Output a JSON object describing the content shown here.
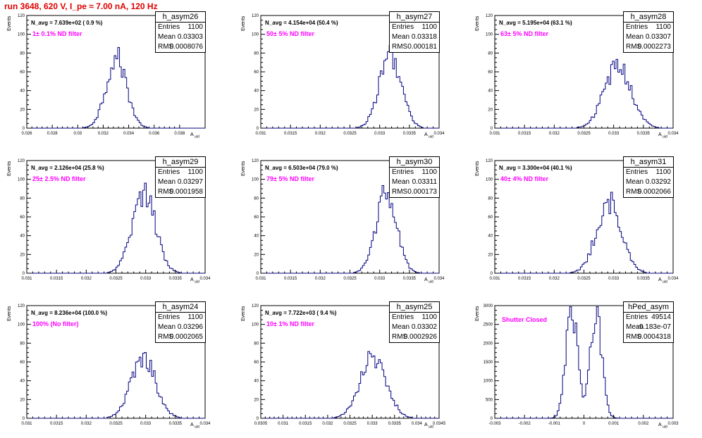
{
  "page": {
    "run_title": "run 3648,   620 V, I_pe ≈ 7.00 nA, 120 Hz"
  },
  "chart_data": [
    {
      "type": "bar",
      "hist_name": "h_asym26",
      "n_avg_label": "N_avg = 7.639e+02 ( 0.9 %)",
      "filter_label": "1± 0.1% ND filter",
      "stats": {
        "entries": "1100",
        "mean": "0.03303",
        "rms": "0.0008076"
      },
      "xlabel": "A_uid",
      "ylabel": "Events",
      "xlim": [
        0.026,
        0.04
      ],
      "ylim": [
        0,
        120
      ],
      "xticks": [
        0.026,
        0.028,
        0.03,
        0.032,
        0.034,
        0.036,
        0.038
      ],
      "xtick_labels": [
        "0.026",
        "0.028",
        "0.03",
        "0.032",
        "0.034",
        "0.036",
        "0.038"
      ],
      "yticks": [
        0,
        20,
        40,
        60,
        80,
        100,
        120
      ],
      "mean": 0.03303,
      "sigma": 0.0008076,
      "peak": 75
    },
    {
      "type": "bar",
      "hist_name": "h_asym27",
      "n_avg_label": "N_avg = 4.154e+04 (50.4 %)",
      "filter_label": "50± 5% ND filter",
      "stats": {
        "entries": "1100",
        "mean": "0.03318",
        "rms": "0.000181"
      },
      "xlabel": "A_uid",
      "ylabel": "Events",
      "xlim": [
        0.031,
        0.034
      ],
      "ylim": [
        0,
        120
      ],
      "xticks": [
        0.031,
        0.0315,
        0.032,
        0.0325,
        0.033,
        0.0335,
        0.034
      ],
      "xtick_labels": [
        "0.031",
        "0.0315",
        "0.032",
        "0.0325",
        "0.033",
        "0.0335",
        "0.034"
      ],
      "yticks": [
        0,
        20,
        40,
        60,
        80,
        100,
        120
      ],
      "mean": 0.03318,
      "sigma": 0.000181,
      "peak": 80
    },
    {
      "type": "bar",
      "hist_name": "h_asym28",
      "n_avg_label": "N_avg = 5.195e+04 (63.1 %)",
      "filter_label": "63± 5% ND filter",
      "stats": {
        "entries": "1100",
        "mean": "0.03307",
        "rms": "0.0002273"
      },
      "xlabel": "A_uid",
      "ylabel": "Events",
      "xlim": [
        0.031,
        0.034
      ],
      "ylim": [
        0,
        120
      ],
      "xticks": [
        0.031,
        0.0315,
        0.032,
        0.0325,
        0.033,
        0.0335,
        0.034
      ],
      "xtick_labels": [
        "0.031",
        "0.0315",
        "0.032",
        "0.0325",
        "0.033",
        "0.0335",
        "0.034"
      ],
      "yticks": [
        0,
        20,
        40,
        60,
        80,
        100,
        120
      ],
      "mean": 0.03307,
      "sigma": 0.0002273,
      "peak": 66
    },
    {
      "type": "bar",
      "hist_name": "h_asym29",
      "n_avg_label": "N_avg = 2.126e+04 (25.8 %)",
      "filter_label": "25± 2.5% ND filter",
      "stats": {
        "entries": "1100",
        "mean": "0.03297",
        "rms": "0.0001958"
      },
      "xlabel": "A_uid",
      "ylabel": "Events",
      "xlim": [
        0.031,
        0.034
      ],
      "ylim": [
        0,
        120
      ],
      "xticks": [
        0.031,
        0.0315,
        0.032,
        0.0325,
        0.033,
        0.0335,
        0.034
      ],
      "xtick_labels": [
        "0.031",
        "0.0315",
        "0.032",
        "0.0325",
        "0.033",
        "0.0335",
        "0.034"
      ],
      "yticks": [
        0,
        20,
        40,
        60,
        80,
        100,
        120
      ],
      "mean": 0.03297,
      "sigma": 0.0001958,
      "peak": 86
    },
    {
      "type": "bar",
      "hist_name": "h_asym30",
      "n_avg_label": "N_avg = 6.503e+04 (79.0 %)",
      "filter_label": "79± 5% ND filter",
      "stats": {
        "entries": "1100",
        "mean": "0.03311",
        "rms": "0.000173"
      },
      "xlabel": "A_uid",
      "ylabel": "Events",
      "xlim": [
        0.031,
        0.034
      ],
      "ylim": [
        0,
        120
      ],
      "xticks": [
        0.031,
        0.0315,
        0.032,
        0.0325,
        0.033,
        0.0335,
        0.034
      ],
      "xtick_labels": [
        "0.031",
        "0.0315",
        "0.032",
        "0.0325",
        "0.033",
        "0.0335",
        "0.034"
      ],
      "yticks": [
        0,
        20,
        40,
        60,
        80,
        100,
        120
      ],
      "mean": 0.03311,
      "sigma": 0.000173,
      "peak": 85
    },
    {
      "type": "bar",
      "hist_name": "h_asym31",
      "n_avg_label": "N_avg = 3.300e+04 (40.1 %)",
      "filter_label": "40± 4% ND filter",
      "stats": {
        "entries": "1100",
        "mean": "0.03292",
        "rms": "0.0002066"
      },
      "xlabel": "A_uid",
      "ylabel": "Events",
      "xlim": [
        0.031,
        0.034
      ],
      "ylim": [
        0,
        120
      ],
      "xticks": [
        0.031,
        0.0315,
        0.032,
        0.0325,
        0.033,
        0.0335,
        0.034
      ],
      "xtick_labels": [
        "0.031",
        "0.0315",
        "0.032",
        "0.0325",
        "0.033",
        "0.0335",
        "0.034"
      ],
      "yticks": [
        0,
        20,
        40,
        60,
        80,
        100,
        120
      ],
      "mean": 0.03292,
      "sigma": 0.0002066,
      "peak": 76
    },
    {
      "type": "bar",
      "hist_name": "h_asym24",
      "n_avg_label": "N_avg = 8.236e+04 (100.0 %)",
      "filter_label": "100% (No filter)",
      "stats": {
        "entries": "1100",
        "mean": "0.03296",
        "rms": "0.0002065"
      },
      "xlabel": "A_uid",
      "ylabel": "Events",
      "xlim": [
        0.031,
        0.034
      ],
      "ylim": [
        0,
        120
      ],
      "xticks": [
        0.031,
        0.0315,
        0.032,
        0.0325,
        0.033,
        0.0335,
        0.034
      ],
      "xtick_labels": [
        "0.031",
        "0.0315",
        "0.032",
        "0.0325",
        "0.033",
        "0.0335",
        "0.034"
      ],
      "yticks": [
        0,
        20,
        40,
        60,
        80,
        100,
        120
      ],
      "mean": 0.03296,
      "sigma": 0.0002065,
      "peak": 66
    },
    {
      "type": "bar",
      "hist_name": "h_asym25",
      "n_avg_label": "N_avg = 7.722e+03 ( 9.4 %)",
      "filter_label": "10± 1% ND filter",
      "stats": {
        "entries": "1100",
        "mean": "0.03302",
        "rms": "0.0002926"
      },
      "xlabel": "A_uid",
      "ylabel": "Events",
      "xlim": [
        0.0305,
        0.0345
      ],
      "ylim": [
        0,
        120
      ],
      "xticks": [
        0.0305,
        0.031,
        0.0315,
        0.032,
        0.0325,
        0.033,
        0.0335,
        0.034,
        0.0345
      ],
      "xtick_labels": [
        "0.0305",
        "0.031",
        "0.0315",
        "0.032",
        "0.0325",
        "0.033",
        "0.0335",
        "0.034",
        "0.0345"
      ],
      "yticks": [
        0,
        20,
        40,
        60,
        80,
        100,
        120
      ],
      "mean": 0.03302,
      "sigma": 0.0002926,
      "peak": 66
    },
    {
      "type": "bar",
      "hist_name": "hPed_asym",
      "n_avg_label": "",
      "filter_label": "Shutter Closed",
      "stats": {
        "entries": "49514",
        "mean": "-9.183e-07",
        "rms": "0.0004318"
      },
      "xlabel": "A_uid",
      "ylabel": "Events",
      "xlim": [
        -0.003,
        0.003
      ],
      "ylim": [
        0,
        3000
      ],
      "xticks": [
        -0.003,
        -0.002,
        -0.001,
        0,
        0.001,
        0.002,
        0.003
      ],
      "xtick_labels": [
        "-0.003",
        "-0.002",
        "-0.001",
        "0",
        "0.001",
        "0.002",
        "0.003"
      ],
      "yticks": [
        0,
        500,
        1000,
        1500,
        2000,
        2500,
        3000
      ],
      "double_peak": true,
      "peak_positions": [
        -0.0004,
        0.0004
      ],
      "sigma": 0.0002,
      "peak": 2900
    }
  ]
}
